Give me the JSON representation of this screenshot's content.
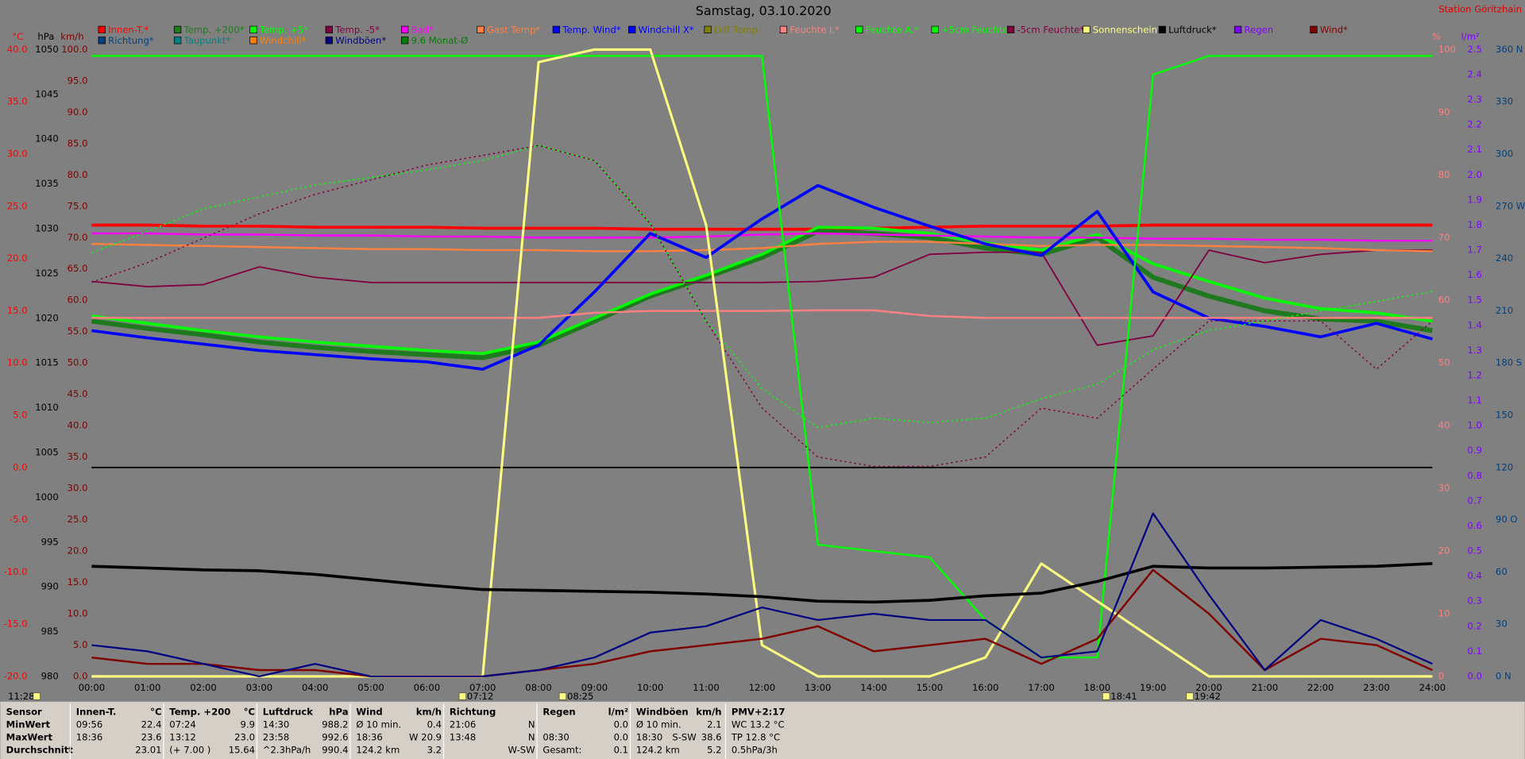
{
  "chart_data": {
    "type": "line",
    "title": "Samstag, 03.10.2020",
    "station": "Station Göritzhain",
    "x": [
      0,
      1,
      2,
      3,
      4,
      5,
      6,
      7,
      8,
      9,
      10,
      11,
      12,
      13,
      14,
      15,
      16,
      17,
      18,
      19,
      20,
      21,
      22,
      23,
      24
    ],
    "xlim": [
      0,
      24
    ],
    "xticks": [
      {
        "value": 0,
        "label": "00:00"
      },
      {
        "value": 1,
        "label": "01:00"
      },
      {
        "value": 2,
        "label": "02:00"
      },
      {
        "value": 3,
        "label": "03:00"
      },
      {
        "value": 4,
        "label": "04:00"
      },
      {
        "value": 5,
        "label": "05:00"
      },
      {
        "value": 6,
        "label": "06:00"
      },
      {
        "value": 7,
        "label": "07:00"
      },
      {
        "value": 8,
        "label": "08:00"
      },
      {
        "value": 9,
        "label": "09:00"
      },
      {
        "value": 10,
        "label": "10:00"
      },
      {
        "value": 11,
        "label": "11:00"
      },
      {
        "value": 12,
        "label": "12:00"
      },
      {
        "value": 13,
        "label": "13:00"
      },
      {
        "value": 14,
        "label": "14:00"
      },
      {
        "value": 15,
        "label": "15:00"
      },
      {
        "value": 16,
        "label": "16:00"
      },
      {
        "value": 17,
        "label": "17:00"
      },
      {
        "value": 18,
        "label": "18:00"
      },
      {
        "value": 19,
        "label": "19:00"
      },
      {
        "value": 20,
        "label": "20:00"
      },
      {
        "value": 21,
        "label": "21:00"
      },
      {
        "value": 22,
        "label": "22:00"
      },
      {
        "value": 23,
        "label": "23:00"
      },
      {
        "value": 24,
        "label": "24:00"
      }
    ],
    "y_label": "°C",
    "ylim": [
      -20,
      40
    ],
    "yticks": [
      {
        "value": 40,
        "label": "40.0"
      },
      {
        "value": 35,
        "label": "35.0"
      },
      {
        "value": 30,
        "label": "30.0"
      },
      {
        "value": 25,
        "label": "25.0"
      },
      {
        "value": 20,
        "label": "20.0"
      },
      {
        "value": 15,
        "label": "15.0"
      },
      {
        "value": 10,
        "label": "10.0"
      },
      {
        "value": 5,
        "label": "5.0"
      },
      {
        "value": 0,
        "label": "0.0"
      },
      {
        "value": -5,
        "label": "-5.0"
      },
      {
        "value": -10,
        "label": "-10.0"
      },
      {
        "value": -15,
        "label": "-15.0"
      },
      {
        "value": -20,
        "label": "-20.0"
      }
    ],
    "y3_label": "hPa",
    "y3lim": [
      980,
      1050
    ],
    "y3ticks": [
      1050,
      1045,
      1040,
      1035,
      1030,
      1025,
      1020,
      1015,
      1010,
      1005,
      1000,
      995,
      990,
      985,
      980
    ],
    "y4_label": "km/h",
    "y4lim": [
      0,
      100
    ],
    "y4ticks": [
      {
        "value": 100,
        "label": "100.0"
      },
      {
        "value": 95,
        "label": "95.0"
      },
      {
        "value": 90,
        "label": "90.0"
      },
      {
        "value": 85,
        "label": "85.0"
      },
      {
        "value": 80,
        "label": "80.0"
      },
      {
        "value": 75,
        "label": "75.0"
      },
      {
        "value": 70,
        "label": "70.0"
      },
      {
        "value": 65,
        "label": "65.0"
      },
      {
        "value": 60,
        "label": "60.0"
      },
      {
        "value": 55,
        "label": "55.0"
      },
      {
        "value": 50,
        "label": "50.0"
      },
      {
        "value": 45,
        "label": "45.0"
      },
      {
        "value": 40,
        "label": "40.0"
      },
      {
        "value": 35,
        "label": "35.0"
      },
      {
        "value": 30,
        "label": "30.0"
      },
      {
        "value": 25,
        "label": "25.0"
      },
      {
        "value": 20,
        "label": "20.0"
      },
      {
        "value": 15,
        "label": "15.0"
      },
      {
        "value": 10,
        "label": "10.0"
      },
      {
        "value": 5,
        "label": "5.0"
      },
      {
        "value": 0,
        "label": "0.0"
      }
    ],
    "y2_label": "%",
    "y2lim": [
      0,
      100
    ],
    "y2ticks": [
      100,
      90,
      80,
      70,
      60,
      50,
      40,
      30,
      20,
      10,
      0
    ],
    "y5_label": "l/m²",
    "y5lim": [
      0,
      2.5
    ],
    "y5ticks": [
      2.5,
      2.4,
      2.3,
      2.2,
      2.1,
      {
        "value": 2,
        "label": "2.0"
      },
      1.9,
      1.8,
      1.7,
      1.6,
      1.5,
      1.4,
      1.3,
      1.2,
      1.1,
      {
        "value": 1,
        "label": "1.0"
      },
      0.9,
      0.8,
      0.7,
      0.6,
      0.5,
      0.4,
      0.3,
      0.2,
      0.1,
      {
        "value": 0,
        "label": "0.0"
      }
    ],
    "y6lim": [
      0,
      360
    ],
    "y6ticks": [
      {
        "value": 360,
        "label": "360 N"
      },
      330,
      300,
      {
        "value": 270,
        "label": "270 W"
      },
      240,
      210,
      {
        "value": 180,
        "label": "180 S"
      },
      150,
      120,
      {
        "value": 90,
        "label": "90 O"
      },
      60,
      30,
      {
        "value": 0,
        "label": "0 N"
      }
    ],
    "series": [
      {
        "name": "Innen-T.*",
        "color": "#ff0000",
        "axis": "y",
        "values": [
          23.2,
          23.2,
          23.1,
          23.1,
          23.0,
          23.0,
          23.0,
          22.9,
          22.9,
          22.9,
          22.8,
          22.8,
          22.8,
          22.8,
          22.9,
          23.0,
          23.1,
          23.1,
          23.1,
          23.2,
          23.2,
          23.2,
          23.2,
          23.2,
          23.2
        ]
      },
      {
        "name": "Temp. +200*",
        "color": "#1f7a1f",
        "axis": "y",
        "values": [
          14.0,
          13.3,
          12.7,
          12.0,
          11.5,
          11.1,
          10.8,
          10.5,
          11.7,
          14.0,
          16.4,
          18.2,
          20.1,
          22.6,
          22.4,
          22.0,
          21.0,
          20.4,
          22.0,
          18.2,
          16.4,
          15.0,
          14.2,
          14.0,
          13.1
        ]
      },
      {
        "name": "Temp. +5*",
        "color": "#00ff00",
        "axis": "y",
        "values": [
          14.5,
          13.8,
          13.1,
          12.5,
          12.0,
          11.6,
          11.2,
          10.9,
          12.0,
          14.3,
          16.6,
          18.4,
          20.4,
          23.0,
          22.9,
          22.4,
          21.5,
          20.8,
          22.3,
          19.5,
          17.8,
          16.2,
          15.2,
          14.8,
          14.0
        ]
      },
      {
        "name": "Temp. -5*",
        "color": "#800040",
        "axis": "y",
        "values": [
          17.8,
          17.3,
          17.5,
          19.2,
          18.2,
          17.7,
          17.7,
          17.7,
          17.7,
          17.7,
          17.7,
          17.7,
          17.7,
          17.8,
          18.2,
          20.4,
          20.6,
          20.6,
          11.7,
          12.6,
          20.8,
          19.6,
          20.4,
          20.8,
          20.8
        ]
      },
      {
        "name": "Bad*",
        "color": "#ff00ff",
        "axis": "y",
        "values": [
          22.4,
          22.4,
          22.3,
          22.3,
          22.2,
          22.2,
          22.1,
          22.1,
          22.0,
          22.0,
          22.0,
          22.1,
          22.3,
          22.4,
          22.3,
          22.2,
          22.1,
          22.0,
          22.0,
          21.9,
          21.9,
          21.8,
          21.8,
          21.7,
          21.7
        ]
      },
      {
        "name": "Gast Temp*",
        "color": "#ff8040",
        "axis": "y",
        "values": [
          21.4,
          21.3,
          21.2,
          21.1,
          21.0,
          20.9,
          20.9,
          20.8,
          20.8,
          20.7,
          20.7,
          20.8,
          21.0,
          21.4,
          21.6,
          21.6,
          21.4,
          21.2,
          21.3,
          21.3,
          21.2,
          21.1,
          21.0,
          20.8,
          20.7
        ]
      },
      {
        "name": "Temp. Wind*",
        "color": "#0000ff",
        "axis": "y",
        "values": [
          13.1,
          12.4,
          11.8,
          11.2,
          10.8,
          10.4,
          10.1,
          9.4,
          11.7,
          16.8,
          22.4,
          20.1,
          23.8,
          27.0,
          24.9,
          23.1,
          21.4,
          20.3,
          24.5,
          16.8,
          14.3,
          13.5,
          12.5,
          13.8,
          12.3
        ]
      },
      {
        "name": "Windchill X*",
        "color": "#0000ff"
      },
      {
        "name": "Diff Temp.",
        "color": "#808000"
      },
      {
        "name": "Feuchte I.*",
        "color": "#ff8080",
        "axis": "y2",
        "values": [
          57.2,
          57.2,
          57.2,
          57.2,
          57.2,
          57.2,
          57.2,
          57.2,
          57.2,
          58.0,
          58.3,
          58.3,
          58.3,
          58.4,
          58.4,
          57.5,
          57.2,
          57.2,
          57.2,
          57.2,
          57.2,
          57.2,
          57.2,
          57.2,
          57.2
        ]
      },
      {
        "name": "Feuchte A.*",
        "color": "#00ff00",
        "axis": "y2",
        "values": [
          99,
          99,
          99,
          99,
          99,
          99,
          99,
          99,
          99,
          99,
          99,
          99,
          99,
          21,
          20,
          19,
          9,
          3,
          3,
          96,
          99,
          99,
          99,
          99,
          99
        ]
      },
      {
        "name": "+5cm Feuchte*",
        "color": "#00ff00",
        "axis": "y2",
        "dash": true,
        "values": [
          67.6,
          71.0,
          74.6,
          76.5,
          78.4,
          79.6,
          80.8,
          82.3,
          84.7,
          82.3,
          72.2,
          56.7,
          45.9,
          39.7,
          41.2,
          40.5,
          41.2,
          44.3,
          46.6,
          52.1,
          55.2,
          56.7,
          58.3,
          59.8,
          61.4
        ]
      },
      {
        "name": "-5cm Feuchte*",
        "color": "#800040",
        "axis": "y2",
        "dash": true,
        "values": [
          62.9,
          66.0,
          69.9,
          73.8,
          76.9,
          79.2,
          81.6,
          83.1,
          84.7,
          82.3,
          72.2,
          56.7,
          42.8,
          35.0,
          33.5,
          33.5,
          35.0,
          42.8,
          41.2,
          49.0,
          56.7,
          56.7,
          56.7,
          49.0,
          56.7
        ]
      },
      {
        "name": "Sonnenschein*",
        "color": "#ffff80",
        "axis": "y2",
        "values": [
          0,
          0,
          0,
          0,
          0,
          0,
          0,
          0,
          98,
          100,
          100,
          72,
          5,
          0,
          0,
          0,
          3,
          18,
          12,
          6,
          0,
          0,
          0,
          0,
          0
        ]
      },
      {
        "name": "Luftdruck*",
        "color": "#000000",
        "axis": "y3",
        "values": [
          992.3,
          992.1,
          991.9,
          991.8,
          991.4,
          990.8,
          990.2,
          989.7,
          989.6,
          989.5,
          989.4,
          989.2,
          988.9,
          988.4,
          988.3,
          988.5,
          989.0,
          989.3,
          990.6,
          992.3,
          992.1,
          992.1,
          992.2,
          992.3,
          992.6
        ]
      },
      {
        "name": "Regen",
        "color": "#8000ff"
      },
      {
        "name": "Wind*",
        "color": "#800000",
        "axis": "y4",
        "values": [
          3,
          2,
          2,
          1,
          1,
          0,
          0,
          0,
          1,
          2,
          4,
          5,
          6,
          8,
          4,
          5,
          6,
          2,
          6,
          17,
          10,
          1,
          6,
          5,
          1
        ]
      },
      {
        "name": "Richtung*",
        "color": "#004080"
      },
      {
        "name": "Taupunkt*",
        "color": "#008080"
      },
      {
        "name": "Windchill*",
        "color": "#ff8000"
      },
      {
        "name": "Windböen*",
        "color": "#000080",
        "axis": "y4",
        "values": [
          5,
          4,
          2,
          0,
          2,
          0,
          0,
          0,
          1,
          3,
          7,
          8,
          11,
          9,
          10,
          9,
          9,
          3,
          4,
          26,
          13,
          1,
          9,
          6,
          2
        ]
      },
      {
        "name": "9.6 Monat-Ø",
        "color": "#008000"
      }
    ]
  },
  "time_markers": [
    "11:28",
    "07:12",
    "08:25",
    "18:41",
    "19:42"
  ],
  "stats": {
    "columns": [
      {
        "head": [
          "Sensor"
        ],
        "rows": [
          [
            "MinWert"
          ],
          [
            "MaxWert"
          ],
          [
            "Durchschnitt"
          ]
        ]
      },
      {
        "head": [
          "Innen-T.",
          "°C"
        ],
        "rows": [
          [
            "09:56",
            "22.4"
          ],
          [
            "18:36",
            "23.6"
          ],
          [
            null,
            "23.01"
          ]
        ]
      },
      {
        "head": [
          "Temp. +200",
          "°C"
        ],
        "rows": [
          [
            "07:24",
            "9.9"
          ],
          [
            "13:12",
            "23.0"
          ],
          [
            "(+ 7.00 )",
            "15.64"
          ]
        ]
      },
      {
        "head": [
          "Luftdruck",
          "hPa"
        ],
        "rows": [
          [
            "14:30",
            "988.2"
          ],
          [
            "23:58",
            "992.6"
          ],
          [
            "^2.3hPa/h",
            "990.4"
          ]
        ]
      },
      {
        "head": [
          "Wind",
          "km/h"
        ],
        "rows": [
          [
            "Ø 10 min.",
            "0.4"
          ],
          [
            "18:36",
            "W 20.9"
          ],
          [
            "124.2 km",
            "3.2"
          ]
        ]
      },
      {
        "head": [
          "Richtung"
        ],
        "rows": [
          [
            "21:06",
            "N"
          ],
          [
            "13:48",
            "N"
          ],
          [
            null,
            "W-SW"
          ]
        ]
      },
      {
        "head": [
          "Regen",
          "l/m²"
        ],
        "rows": [
          [
            null,
            "0.0"
          ],
          [
            "08:30",
            "0.0"
          ],
          [
            "Gesamt:",
            "0.1"
          ]
        ]
      },
      {
        "head": [
          "Windböen",
          "km/h"
        ],
        "rows": [
          [
            "Ø 10 min.",
            "2.1"
          ],
          [
            "18:30",
            "S-SW",
            "38.6"
          ],
          [
            "124.2 km",
            "5.2"
          ]
        ]
      },
      {
        "head": [
          "PMV+2:17"
        ],
        "rows": [
          [
            "WC 13.2 °C"
          ],
          [
            "TP 12.8 °C"
          ],
          [
            "0.5hPa/3h"
          ]
        ]
      }
    ]
  }
}
